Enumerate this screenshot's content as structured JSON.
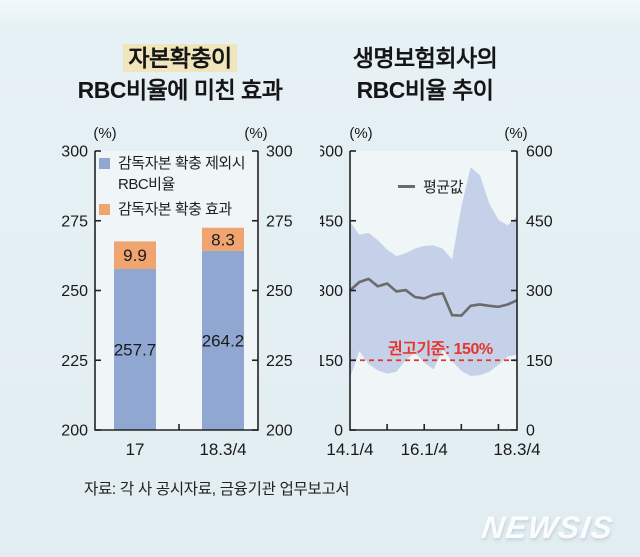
{
  "page": {
    "background": "#e6f1f5",
    "source_note": "자료: 각 사 공시자료, 금융기관 업무보고서",
    "watermark": "NEWSIS"
  },
  "left_chart": {
    "title_line1": "자본확충이",
    "title_line2": "RBC비율에 미친 효과",
    "unit_left": "(%)",
    "unit_right": "(%)",
    "legend": [
      {
        "line1": "감독자본 확충 제외시",
        "line2": "RBC비율",
        "color": "#8fa7d1"
      },
      {
        "line1": "감독자본 확충 효과",
        "line2": "",
        "color": "#f0a470"
      }
    ]
  },
  "right_chart": {
    "title_line1": "생명보험회사의",
    "title_line2": "RBC비율 추이",
    "unit_left": "(%)",
    "unit_right": "(%)",
    "legend_label": "평균값",
    "legend_color": "#6b6b6b",
    "reference_label": "권고기준: 150%"
  },
  "chart_data": [
    {
      "type": "bar",
      "stacked": true,
      "title": "자본확충이 RBC비율에 미친 효과",
      "unit": "%",
      "categories": [
        "17",
        "18.3/4"
      ],
      "series": [
        {
          "name": "감독자본 확충 제외시 RBC비율",
          "color": "#8fa7d1",
          "values": [
            257.7,
            264.2
          ]
        },
        {
          "name": "감독자본 확충 효과",
          "color": "#f0a470",
          "values": [
            9.9,
            8.3
          ]
        }
      ],
      "ylim": [
        200,
        300
      ],
      "y_ticks": [
        200,
        225,
        250,
        275,
        300
      ],
      "grid": false,
      "value_labels_shown": true,
      "legend_position": "top-left-inside"
    },
    {
      "type": "area",
      "title": "생명보험회사의 RBC비율 추이",
      "unit": "%",
      "x": [
        "14.1/4",
        "14.2/4",
        "14.3/4",
        "14.4/4",
        "15.1/4",
        "15.2/4",
        "15.3/4",
        "15.4/4",
        "16.1/4",
        "16.2/4",
        "16.3/4",
        "16.4/4",
        "17.1/4",
        "17.2/4",
        "17.3/4",
        "17.4/4",
        "18.1/4",
        "18.2/4",
        "18.3/4"
      ],
      "x_axis_labels": [
        {
          "label": "14.1/4",
          "index": 0
        },
        {
          "label": "16.1/4",
          "index": 8
        },
        {
          "label": "18.3/4",
          "index": 18
        }
      ],
      "x_minor_tick_indices": [
        4,
        8,
        12,
        16
      ],
      "ylim": [
        0,
        600
      ],
      "y_ticks": [
        0,
        150,
        300,
        450,
        600
      ],
      "grid": false,
      "band": {
        "color": "#c4d1e8",
        "upper": [
          448,
          420,
          424,
          408,
          388,
          374,
          380,
          390,
          396,
          397,
          390,
          367,
          480,
          565,
          548,
          488,
          452,
          440,
          460
        ],
        "lower": [
          112,
          170,
          142,
          128,
          121,
          125,
          150,
          166,
          145,
          130,
          172,
          148,
          127,
          116,
          118,
          125,
          140,
          158,
          162
        ]
      },
      "series": [
        {
          "name": "평균값",
          "color": "#6b6b6b",
          "values": [
            300,
            318,
            325,
            309,
            315,
            298,
            301,
            286,
            283,
            291,
            294,
            247,
            246,
            267,
            270,
            267,
            265,
            270,
            279
          ]
        }
      ],
      "reference_line": {
        "value": 150,
        "label": "권고기준: 150%",
        "color": "#e8352b",
        "style": "dashed"
      },
      "legend_position": "top-inside"
    }
  ]
}
